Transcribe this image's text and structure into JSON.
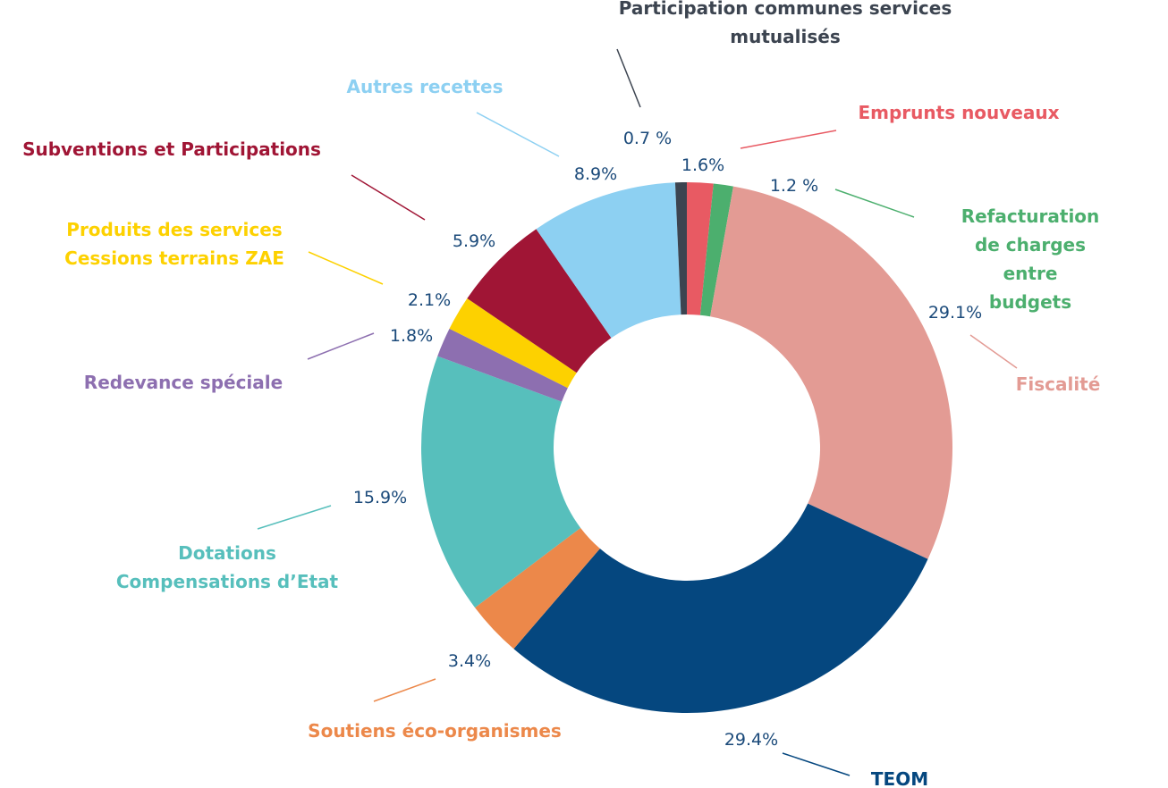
{
  "chart_data": {
    "type": "donut",
    "categories": [
      "Emprunts nouveaux",
      "Refacturation de charges\nentre budgets",
      "Fiscalité",
      "TEOM",
      "Soutiens éco-organismes",
      "Dotations\nCompensations d’Etat",
      "Redevance spéciale",
      "Produits des services\nCessions terrains ZAE",
      "Subventions et Participations",
      "Autres recettes",
      "Participation communes services mutualisés"
    ],
    "values": [
      1.6,
      1.2,
      29.1,
      29.4,
      3.4,
      15.9,
      1.8,
      2.1,
      5.9,
      8.9,
      0.7
    ],
    "value_labels": [
      "1.6%",
      "1.2 %",
      "29.1%",
      "29.4%",
      "3.4%",
      "15.9%",
      "1.8%",
      "2.1%",
      "5.9%",
      "8.9%",
      "0.7 %"
    ],
    "colors": [
      "#e85a63",
      "#4caf6e",
      "#e39b94",
      "#05477f",
      "#ec884a",
      "#57bfbc",
      "#8d6fb0",
      "#fdd100",
      "#a01535",
      "#8dd0f2",
      "#3c4450"
    ]
  }
}
